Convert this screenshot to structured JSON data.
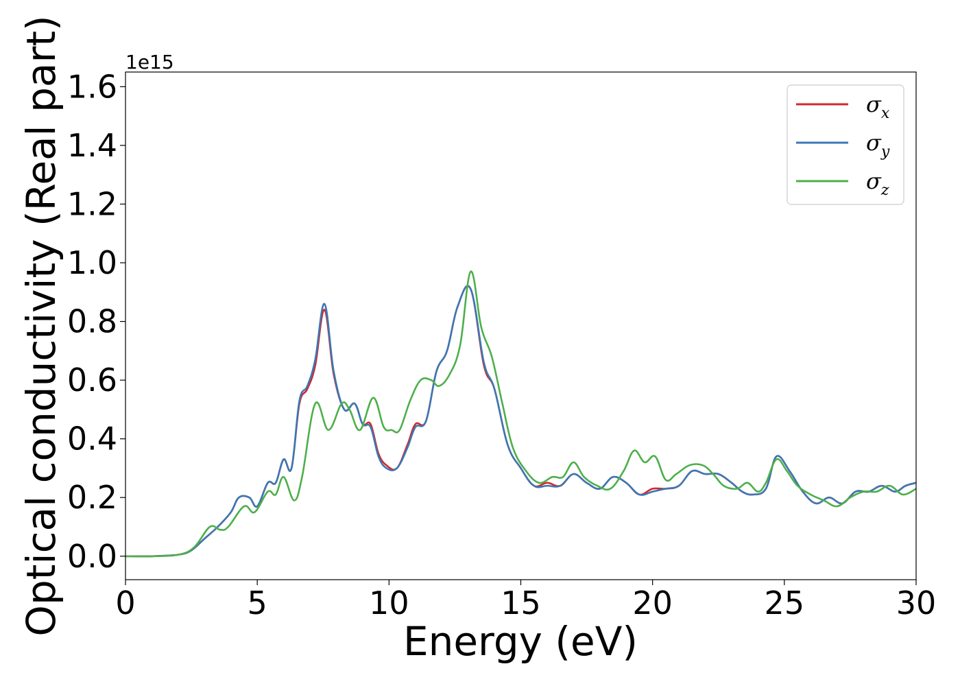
{
  "chart_data": {
    "type": "line",
    "title": "",
    "xlabel": "Energy (eV)",
    "ylabel": "Optical conductivity (Real part)",
    "y_offset_label": "1e15",
    "xlim": [
      0,
      30
    ],
    "ylim": [
      -0.08,
      1.65
    ],
    "xticks": [
      0,
      5,
      10,
      15,
      20,
      25,
      30
    ],
    "xtick_labels": [
      "0",
      "5",
      "10",
      "15",
      "20",
      "25",
      "30"
    ],
    "yticks": [
      0.0,
      0.2,
      0.4,
      0.6,
      0.8,
      1.0,
      1.2,
      1.4,
      1.6
    ],
    "ytick_labels": [
      "0.0",
      "0.2",
      "0.4",
      "0.6",
      "0.8",
      "1.0",
      "1.2",
      "1.4",
      "1.6"
    ],
    "grid": false,
    "legend_position": "top-right",
    "series": [
      {
        "name": "σx",
        "legend_main": "σ",
        "legend_sub": "x",
        "color": "#d62728",
        "x": [
          0,
          1,
          2,
          2.5,
          3,
          3.5,
          4,
          4.3,
          4.7,
          5,
          5.4,
          5.7,
          6,
          6.3,
          6.6,
          6.9,
          7.2,
          7.55,
          7.9,
          8.3,
          8.7,
          9,
          9.3,
          9.6,
          9.9,
          10.3,
          10.7,
          11,
          11.4,
          11.8,
          12.2,
          12.6,
          13.1,
          13.6,
          14,
          14.5,
          15,
          15.5,
          16,
          16.5,
          17,
          17.5,
          18,
          18.5,
          19,
          19.5,
          20,
          20.5,
          21,
          21.5,
          22,
          22.5,
          23,
          23.4,
          23.8,
          24.3,
          24.7,
          25.2,
          25.7,
          26.2,
          26.7,
          27.2,
          27.7,
          28.2,
          28.7,
          29.2,
          29.6,
          30
        ],
        "y": [
          0.0,
          0.0,
          0.005,
          0.02,
          0.06,
          0.1,
          0.15,
          0.2,
          0.2,
          0.17,
          0.25,
          0.25,
          0.33,
          0.3,
          0.52,
          0.57,
          0.65,
          0.84,
          0.62,
          0.5,
          0.52,
          0.45,
          0.45,
          0.35,
          0.31,
          0.3,
          0.38,
          0.45,
          0.46,
          0.63,
          0.7,
          0.85,
          0.91,
          0.65,
          0.57,
          0.38,
          0.3,
          0.24,
          0.25,
          0.24,
          0.28,
          0.25,
          0.23,
          0.27,
          0.25,
          0.21,
          0.23,
          0.23,
          0.24,
          0.29,
          0.28,
          0.28,
          0.25,
          0.22,
          0.21,
          0.23,
          0.34,
          0.29,
          0.22,
          0.18,
          0.2,
          0.18,
          0.22,
          0.22,
          0.24,
          0.22,
          0.24,
          0.25
        ]
      },
      {
        "name": "σy",
        "legend_main": "σ",
        "legend_sub": "y",
        "color": "#3b78b5",
        "x": [
          0,
          1,
          2,
          2.5,
          3,
          3.5,
          4,
          4.3,
          4.7,
          5,
          5.4,
          5.7,
          6,
          6.3,
          6.6,
          6.9,
          7.2,
          7.55,
          7.9,
          8.3,
          8.7,
          9,
          9.3,
          9.6,
          9.9,
          10.3,
          10.7,
          11,
          11.4,
          11.8,
          12.2,
          12.6,
          13.1,
          13.6,
          14,
          14.5,
          15,
          15.5,
          16,
          16.5,
          17,
          17.5,
          18,
          18.5,
          19,
          19.5,
          20,
          20.5,
          21,
          21.5,
          22,
          22.5,
          23,
          23.4,
          23.8,
          24.3,
          24.7,
          25.2,
          25.7,
          26.2,
          26.7,
          27.2,
          27.7,
          28.2,
          28.7,
          29.2,
          29.6,
          30
        ],
        "y": [
          0.0,
          0.0,
          0.005,
          0.02,
          0.06,
          0.1,
          0.15,
          0.2,
          0.2,
          0.17,
          0.25,
          0.25,
          0.33,
          0.3,
          0.53,
          0.58,
          0.67,
          0.86,
          0.63,
          0.5,
          0.52,
          0.45,
          0.44,
          0.34,
          0.3,
          0.3,
          0.37,
          0.44,
          0.46,
          0.63,
          0.7,
          0.85,
          0.91,
          0.66,
          0.57,
          0.38,
          0.3,
          0.24,
          0.24,
          0.24,
          0.28,
          0.25,
          0.23,
          0.27,
          0.25,
          0.21,
          0.22,
          0.23,
          0.24,
          0.29,
          0.28,
          0.28,
          0.25,
          0.22,
          0.21,
          0.23,
          0.34,
          0.29,
          0.22,
          0.18,
          0.2,
          0.18,
          0.22,
          0.22,
          0.24,
          0.22,
          0.24,
          0.25
        ]
      },
      {
        "name": "σz",
        "legend_main": "σ",
        "legend_sub": "z",
        "color": "#4daf4a",
        "x": [
          0,
          1,
          2,
          2.6,
          3.2,
          3.6,
          3.9,
          4.5,
          4.9,
          5.4,
          5.7,
          6.0,
          6.4,
          6.7,
          7.2,
          7.7,
          8.2,
          8.5,
          8.9,
          9.4,
          9.8,
          10.1,
          10.4,
          10.8,
          11.2,
          11.6,
          11.9,
          12.3,
          12.7,
          13.1,
          13.5,
          13.9,
          14.3,
          14.7,
          15.2,
          15.7,
          16.2,
          16.6,
          17,
          17.4,
          17.9,
          18.4,
          18.9,
          19.3,
          19.7,
          20.1,
          20.5,
          20.9,
          21.4,
          21.9,
          22.3,
          22.7,
          23.2,
          23.6,
          24,
          24.3,
          24.7,
          25.1,
          25.5,
          26,
          26.5,
          27,
          27.5,
          28,
          28.5,
          29,
          29.5,
          30
        ],
        "y": [
          0.0,
          0.0,
          0.005,
          0.03,
          0.1,
          0.09,
          0.1,
          0.17,
          0.15,
          0.22,
          0.21,
          0.27,
          0.19,
          0.27,
          0.52,
          0.43,
          0.52,
          0.5,
          0.43,
          0.54,
          0.44,
          0.43,
          0.43,
          0.53,
          0.6,
          0.6,
          0.58,
          0.62,
          0.72,
          0.97,
          0.78,
          0.68,
          0.52,
          0.37,
          0.29,
          0.25,
          0.27,
          0.27,
          0.32,
          0.27,
          0.24,
          0.23,
          0.29,
          0.36,
          0.32,
          0.34,
          0.26,
          0.28,
          0.31,
          0.31,
          0.28,
          0.24,
          0.23,
          0.25,
          0.22,
          0.25,
          0.33,
          0.29,
          0.24,
          0.21,
          0.19,
          0.17,
          0.2,
          0.22,
          0.22,
          0.24,
          0.21,
          0.23
        ]
      }
    ]
  }
}
